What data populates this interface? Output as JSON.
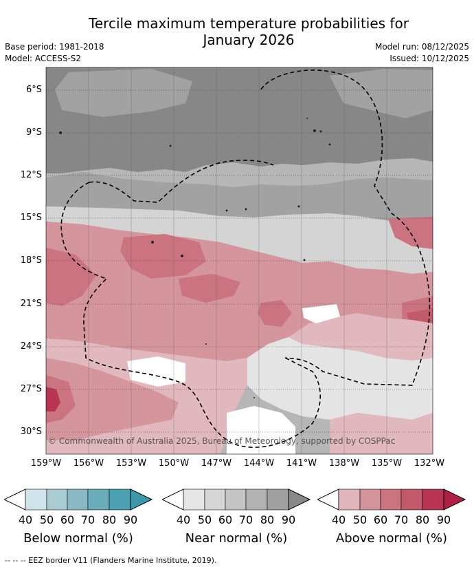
{
  "title": {
    "line1": "Tercile maximum temperature probabilities for",
    "line2": "January 2026"
  },
  "meta": {
    "base_period": "Base period: 1981-2018",
    "model": "Model: ACCESS-S2",
    "model_run": "Model run: 08/12/2025",
    "issued": "Issued: 10/12/2025"
  },
  "map": {
    "lat_labels": [
      "6°S",
      "9°S",
      "12°S",
      "15°S",
      "18°S",
      "21°S",
      "24°S",
      "27°S",
      "30°S"
    ],
    "lon_labels": [
      "159°W",
      "156°W",
      "153°W",
      "150°W",
      "147°W",
      "144°W",
      "141°W",
      "138°W",
      "135°W",
      "132°W"
    ],
    "copyright": "© Commonwealth of Australia 2025, Bureau of Meteorology, supported by COSPPac"
  },
  "legend": {
    "below": {
      "title": "Below normal (%)",
      "ticks": [
        "40",
        "50",
        "60",
        "70",
        "80",
        "90"
      ],
      "colors": [
        "#cfe4ea",
        "#a9ccd3",
        "#88b9c4",
        "#6bacba",
        "#4aa0b0"
      ]
    },
    "near": {
      "title": "Near normal (%)",
      "ticks": [
        "40",
        "50",
        "60",
        "70",
        "80",
        "90"
      ],
      "colors": [
        "#e5e5e5",
        "#d5d5d5",
        "#c4c4c4",
        "#b3b3b3",
        "#a0a0a0"
      ]
    },
    "above": {
      "title": "Above normal (%)",
      "ticks": [
        "40",
        "50",
        "60",
        "70",
        "80",
        "90"
      ],
      "colors": [
        "#e0b6bc",
        "#d5959d",
        "#cb7480",
        "#c25a6a",
        "#b73550"
      ]
    },
    "arrow_colors": {
      "below_end": "#3a98aa",
      "near_end": "#888888",
      "above_end": "#b01f45"
    }
  },
  "footer": "-- -- -- EEZ border V11 (Flanders Marine Institute, 2019).",
  "colors": {
    "near_40": "#e4e4e4",
    "near_50": "#d4d4d4",
    "near_60": "#b6b6b6",
    "near_70": "#a2a2a2",
    "near_80": "#878787",
    "above_40": "#e0b8be",
    "above_50": "#d5959d",
    "above_60": "#cb7480",
    "above_70": "#c25a6a",
    "above_80": "#b73550"
  }
}
